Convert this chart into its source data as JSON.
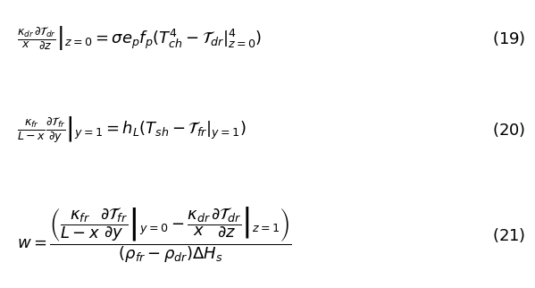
{
  "eq1": "\\frac{\\kappa_{dr}}{x} \\left. \\frac{\\partial \\mathcal{T}_{dr}}{\\partial z} \\right|_{z=0} = \\sigma e_p f_p (T_{ch}^4 - \\mathcal{T}_{dr}|_{z=0}^4)",
  "eq1_num": "(19)",
  "eq2": "\\frac{\\kappa_{fr}}{L-x} \\left. \\frac{\\partial \\mathcal{T}_{fr}}{\\partial y} \\right|_{y=1} = h_L(T_{sh} - \\mathcal{T}_{fr}|_{y=1})",
  "eq2_num": "(20)",
  "eq3_lhs": "w = \\dfrac{\\left( \\dfrac{\\kappa_{fr}}{L-x} \\left. \\dfrac{\\partial \\mathcal{T}_{fr}}{\\partial y} \\right|_{y=0} - \\dfrac{\\kappa_{dr}}{x} \\left. \\dfrac{\\partial \\mathcal{T}_{dr}}{\\partial z} \\right|_{z=1} \\right)}{(\\rho_{fr} - \\rho_{dr}) \\Delta H_s}",
  "eq3_num": "(21)",
  "bg_color": "#ffffff",
  "text_color": "#000000",
  "fontsize": 13
}
